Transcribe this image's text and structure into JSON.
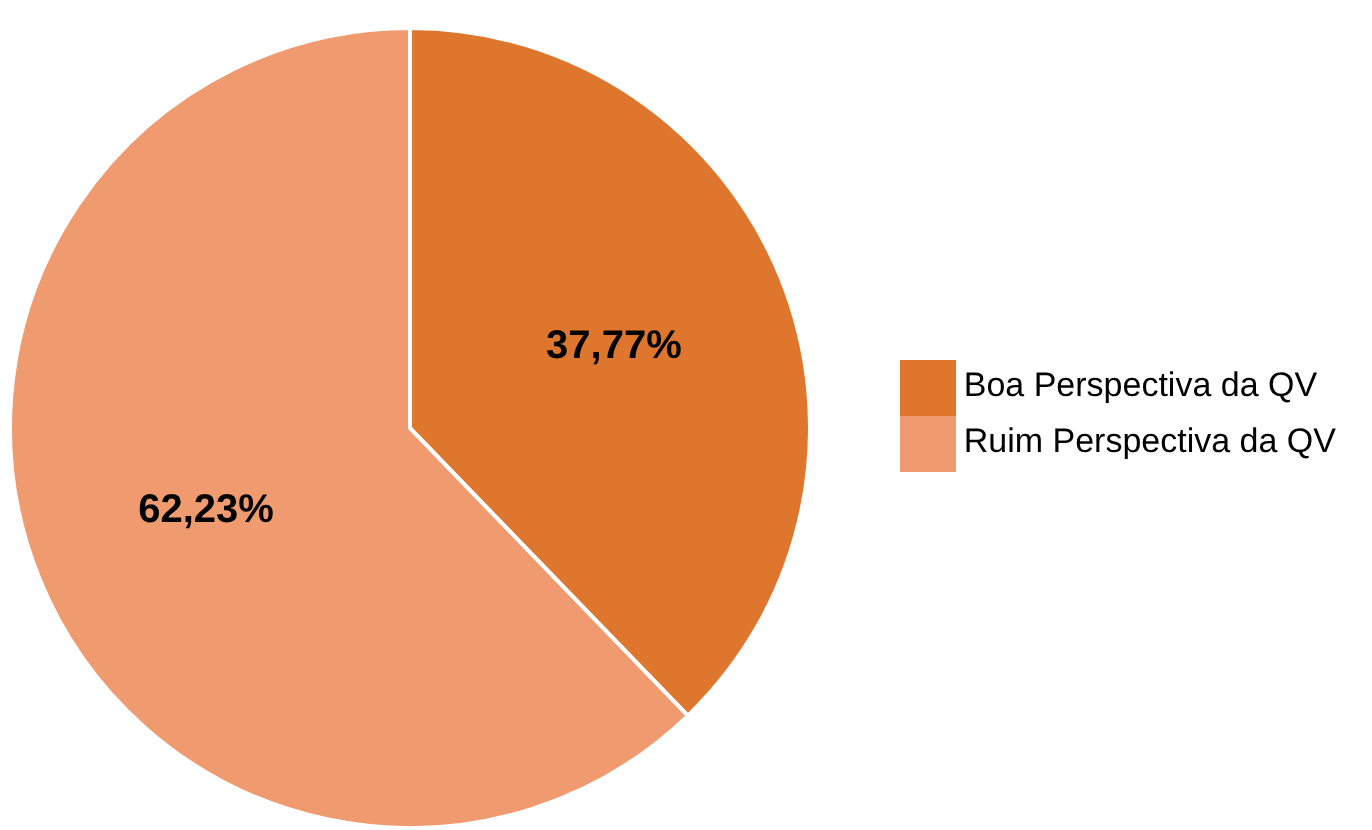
{
  "chart_data": {
    "type": "pie",
    "categories": [
      "Ruim Perspectiva da QV",
      "Boa Perspectiva da QV"
    ],
    "values": [
      62.23,
      37.77
    ],
    "colors": [
      "#f09a70",
      "#df762e"
    ],
    "value_labels": [
      "62,23%",
      "37,77%"
    ],
    "legend": "right"
  }
}
